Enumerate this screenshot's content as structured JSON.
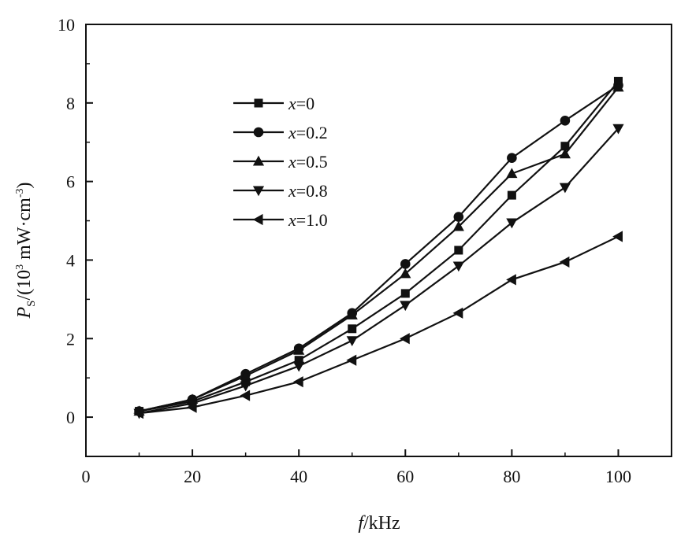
{
  "chart_data": {
    "type": "line",
    "title": "",
    "xlabel": {
      "var": "f",
      "unit": "/kHz"
    },
    "ylabel": {
      "var": "P",
      "sub": "S",
      "unit_prefix": "/(10",
      "exp": "3",
      "unit_mid": " mW·cm",
      "exp2": "-3",
      "unit_suffix": ")"
    },
    "xlim": [
      0,
      110
    ],
    "ylim": [
      -1,
      10
    ],
    "x_ticks": [
      0,
      20,
      40,
      60,
      80,
      100
    ],
    "y_ticks": [
      0,
      2,
      4,
      6,
      8,
      10
    ],
    "x_tick_labels": [
      "0",
      "20",
      "40",
      "60",
      "80",
      "100"
    ],
    "y_tick_labels": [
      "0",
      "2",
      "4",
      "6",
      "8",
      "10"
    ],
    "grid": false,
    "legend_position": "upper-left inside",
    "x": [
      10,
      20,
      30,
      40,
      50,
      60,
      70,
      80,
      90,
      100
    ],
    "series": [
      {
        "name": "x=0",
        "var": "x",
        "value": "=0",
        "marker": "square",
        "values": [
          0.15,
          0.4,
          0.9,
          1.45,
          2.25,
          3.15,
          4.25,
          5.65,
          6.9,
          8.55
        ]
      },
      {
        "name": "x=0.2",
        "var": "x",
        "value": "=0.2",
        "marker": "circle",
        "values": [
          0.15,
          0.45,
          1.1,
          1.75,
          2.65,
          3.9,
          5.1,
          6.6,
          7.55,
          8.45
        ]
      },
      {
        "name": "x=0.5",
        "var": "x",
        "value": "=0.5",
        "marker": "triangle-up",
        "values": [
          0.15,
          0.45,
          1.05,
          1.7,
          2.6,
          3.65,
          4.85,
          6.2,
          6.7,
          8.4
        ]
      },
      {
        "name": "x=0.8",
        "var": "x",
        "value": "=0.8",
        "marker": "triangle-down",
        "values": [
          0.1,
          0.35,
          0.8,
          1.3,
          1.95,
          2.85,
          3.85,
          4.95,
          5.85,
          7.35
        ]
      },
      {
        "name": "x=1.0",
        "var": "x",
        "value": "=1.0",
        "marker": "triangle-left",
        "values": [
          0.1,
          0.25,
          0.55,
          0.9,
          1.45,
          2.0,
          2.65,
          3.5,
          3.95,
          4.6
        ]
      }
    ]
  }
}
